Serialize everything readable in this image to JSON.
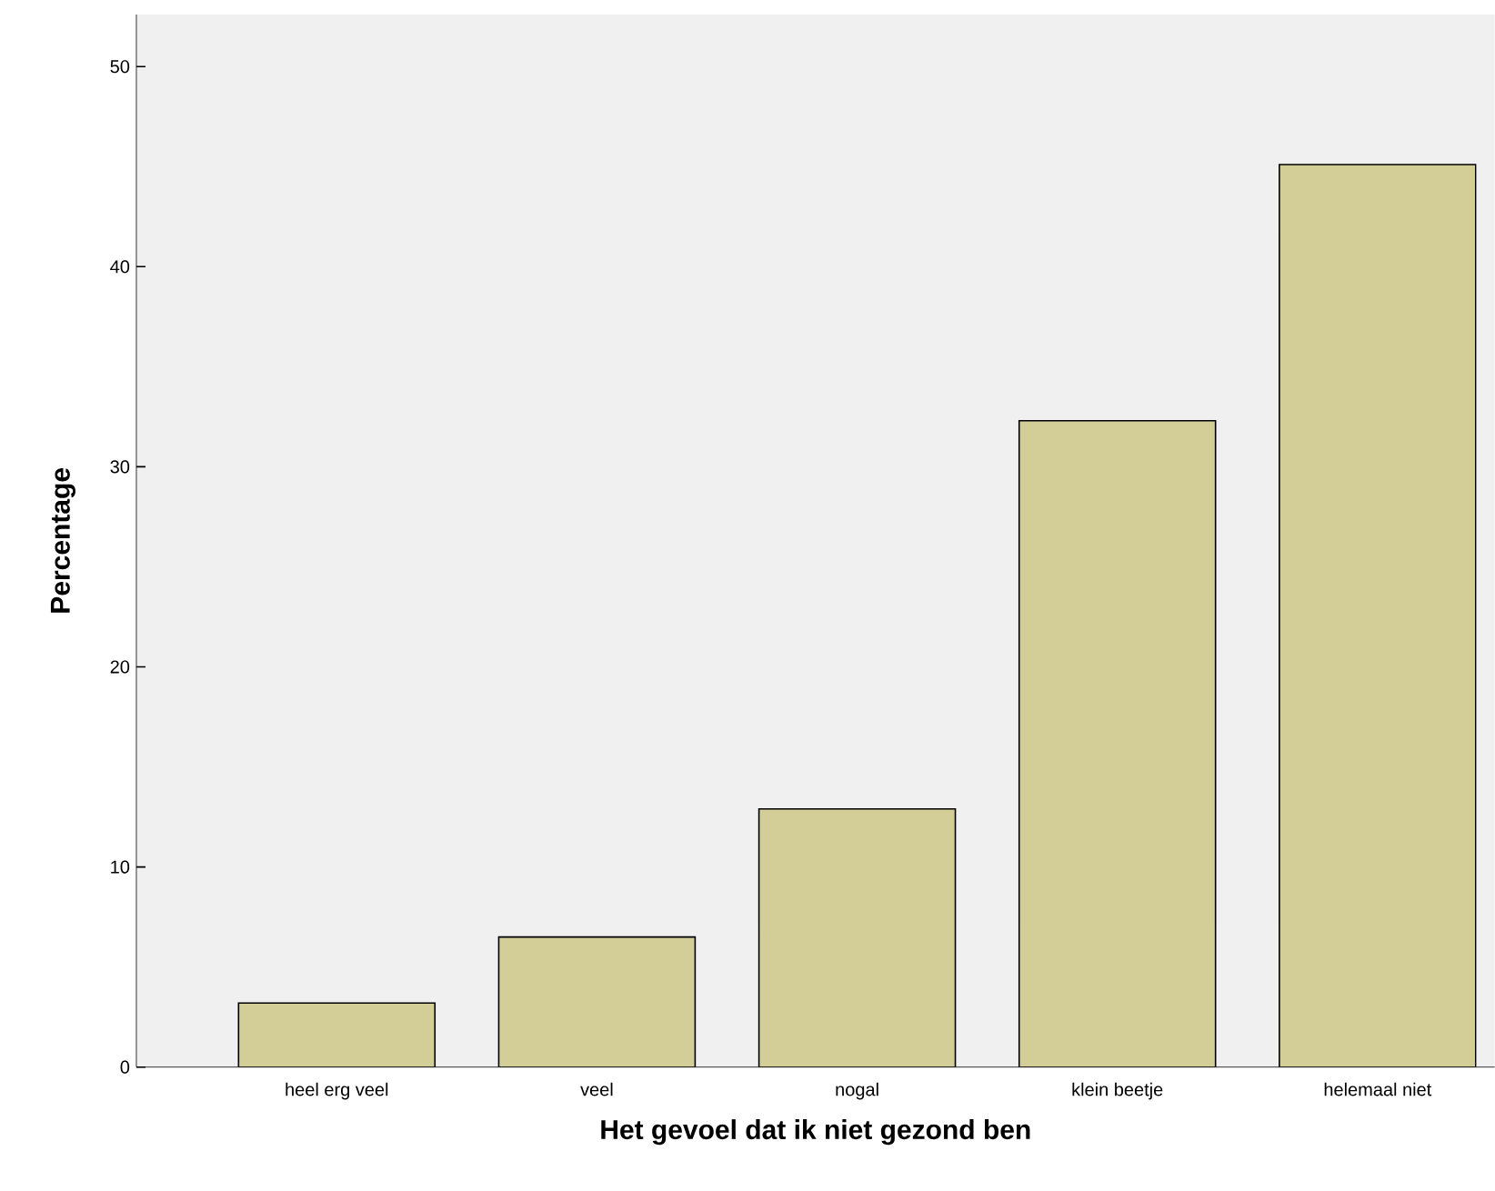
{
  "chart_data": {
    "type": "bar",
    "xlabel": "Het gevoel dat ik niet gezond ben",
    "ylabel": "Percentage",
    "categories": [
      "heel erg veel",
      "veel",
      "nogal",
      "klein beetje",
      "helemaal niet"
    ],
    "values": [
      3.2,
      6.5,
      12.9,
      32.3,
      45.1
    ],
    "color": "#d3ce97",
    "ylim": [
      0,
      52.6
    ],
    "yticks": [
      0,
      10,
      20,
      30,
      40,
      50
    ]
  }
}
